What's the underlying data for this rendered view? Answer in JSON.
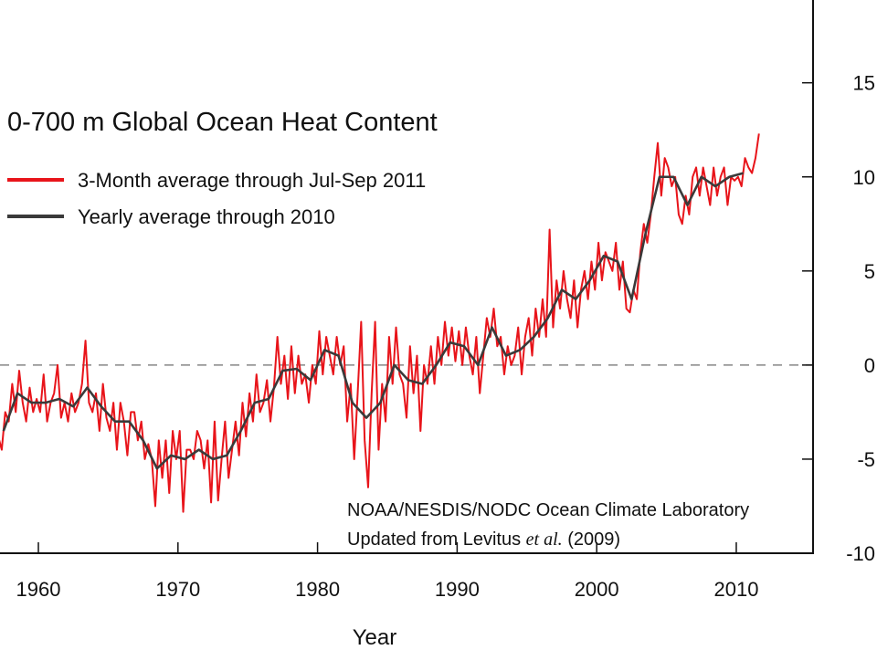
{
  "chart_data": {
    "type": "line",
    "title": "0-700 m Global Ocean Heat Content",
    "x_label": "Year",
    "source": {
      "line1": "NOAA/NESDIS/NODC Ocean Climate Laboratory",
      "line2": [
        "Updated from Levitus",
        "et al.",
        "(2009)"
      ]
    },
    "xlim": [
      1957.25,
      2015.5
    ],
    "ylim": [
      -10,
      19.4
    ],
    "xticks": [
      1960,
      1970,
      1980,
      1990,
      2000,
      2010
    ],
    "yticks": [
      -10,
      -5,
      0,
      5,
      10,
      15
    ],
    "reference_line": 0,
    "series": [
      {
        "name": "3-Month average through Jul-Sep 2011",
        "color": "#e8141a",
        "x": [
          1957.125,
          1957.375,
          1957.625,
          1957.875,
          1958.125,
          1958.375,
          1958.625,
          1958.875,
          1959.125,
          1959.375,
          1959.625,
          1959.875,
          1960.125,
          1960.375,
          1960.625,
          1960.875,
          1961.125,
          1961.375,
          1961.625,
          1961.875,
          1962.125,
          1962.375,
          1962.625,
          1962.875,
          1963.125,
          1963.375,
          1963.625,
          1963.875,
          1964.125,
          1964.375,
          1964.625,
          1964.875,
          1965.125,
          1965.375,
          1965.625,
          1965.875,
          1966.125,
          1966.375,
          1966.625,
          1966.875,
          1967.125,
          1967.375,
          1967.625,
          1967.875,
          1968.125,
          1968.375,
          1968.625,
          1968.875,
          1969.125,
          1969.375,
          1969.625,
          1969.875,
          1970.125,
          1970.375,
          1970.625,
          1970.875,
          1971.125,
          1971.375,
          1971.625,
          1971.875,
          1972.125,
          1972.375,
          1972.625,
          1972.875,
          1973.125,
          1973.375,
          1973.625,
          1973.875,
          1974.125,
          1974.375,
          1974.625,
          1974.875,
          1975.125,
          1975.375,
          1975.625,
          1975.875,
          1976.125,
          1976.375,
          1976.625,
          1976.875,
          1977.125,
          1977.375,
          1977.625,
          1977.875,
          1978.125,
          1978.375,
          1978.625,
          1978.875,
          1979.125,
          1979.375,
          1979.625,
          1979.875,
          1980.125,
          1980.375,
          1980.625,
          1980.875,
          1981.125,
          1981.375,
          1981.625,
          1981.875,
          1982.125,
          1982.375,
          1982.625,
          1982.875,
          1983.125,
          1983.375,
          1983.625,
          1983.875,
          1984.125,
          1984.375,
          1984.625,
          1984.875,
          1985.125,
          1985.375,
          1985.625,
          1985.875,
          1986.125,
          1986.375,
          1986.625,
          1986.875,
          1987.125,
          1987.375,
          1987.625,
          1987.875,
          1988.125,
          1988.375,
          1988.625,
          1988.875,
          1989.125,
          1989.375,
          1989.625,
          1989.875,
          1990.125,
          1990.375,
          1990.625,
          1990.875,
          1991.125,
          1991.375,
          1991.625,
          1991.875,
          1992.125,
          1992.375,
          1992.625,
          1992.875,
          1993.125,
          1993.375,
          1993.625,
          1993.875,
          1994.125,
          1994.375,
          1994.625,
          1994.875,
          1995.125,
          1995.375,
          1995.625,
          1995.875,
          1996.125,
          1996.375,
          1996.625,
          1996.875,
          1997.125,
          1997.375,
          1997.625,
          1997.875,
          1998.125,
          1998.375,
          1998.625,
          1998.875,
          1999.125,
          1999.375,
          1999.625,
          1999.875,
          2000.125,
          2000.375,
          2000.625,
          2000.875,
          2001.125,
          2001.375,
          2001.625,
          2001.875,
          2002.125,
          2002.375,
          2002.625,
          2002.875,
          2003.125,
          2003.375,
          2003.625,
          2003.875,
          2004.125,
          2004.375,
          2004.625,
          2004.875,
          2005.125,
          2005.375,
          2005.625,
          2005.875,
          2006.125,
          2006.375,
          2006.625,
          2006.875,
          2007.125,
          2007.375,
          2007.625,
          2007.875,
          2008.125,
          2008.375,
          2008.625,
          2008.875,
          2009.125,
          2009.375,
          2009.625,
          2009.875,
          2010.125,
          2010.375,
          2010.625,
          2010.875,
          2011.125,
          2011.375,
          2011.625
        ],
        "values": [
          -3.8,
          -4.5,
          -2.5,
          -3,
          -1,
          -2.5,
          -0.3,
          -2,
          -3,
          -1.2,
          -2.5,
          -1.8,
          -2.5,
          -0.5,
          -3,
          -2,
          -1.5,
          0,
          -2.8,
          -2,
          -3,
          -1.5,
          -2.5,
          -2,
          -1,
          1.3,
          -2,
          -2.5,
          -1.5,
          -3.5,
          -1,
          -2.8,
          -3.5,
          -2,
          -4.5,
          -2,
          -3,
          -4.8,
          -2.5,
          -2.5,
          -4,
          -3,
          -5,
          -4.2,
          -5,
          -7.5,
          -4,
          -6,
          -4,
          -6.8,
          -3.5,
          -5,
          -3.5,
          -7.8,
          -4.5,
          -4.5,
          -5,
          -3.5,
          -4,
          -5.5,
          -4,
          -7.3,
          -3,
          -7.2,
          -5,
          -3,
          -6,
          -4.5,
          -3,
          -4.8,
          -2,
          -3.8,
          -1.5,
          -3,
          -0.5,
          -2.5,
          -2,
          -0.8,
          -3,
          -1.2,
          1.5,
          -1,
          0.5,
          -1.8,
          1,
          -1.5,
          0.5,
          -1,
          -0.5,
          -2,
          0,
          -1,
          1.8,
          -0.5,
          1.5,
          0.5,
          -0.5,
          1.5,
          0,
          1,
          -3,
          -1,
          -5,
          -1.5,
          2.3,
          -4,
          -6.5,
          -1.5,
          2.3,
          -4.5,
          -1,
          -3,
          1.5,
          -1,
          2,
          -0.5,
          -1,
          -2.8,
          1,
          -1.5,
          0.5,
          -3.5,
          0,
          -1,
          1,
          -1,
          1.5,
          0,
          2.3,
          0.5,
          2,
          0.2,
          1.8,
          0,
          2,
          0.5,
          -0.5,
          1.5,
          -1.5,
          0.5,
          2.5,
          1.5,
          3,
          1,
          1.5,
          -0.5,
          1,
          0,
          0.5,
          2,
          -0.5,
          1.5,
          2.5,
          0.5,
          3,
          1.5,
          3.5,
          1.5,
          7.2,
          2,
          4.5,
          3,
          5,
          3.5,
          2.5,
          4.5,
          2,
          4,
          5,
          3.5,
          5.5,
          4,
          6.5,
          4.5,
          6,
          5.5,
          5,
          6.5,
          4,
          5.5,
          3,
          2.8,
          4,
          3.5,
          6,
          7.5,
          6.5,
          8,
          10,
          11.8,
          9,
          11,
          10.5,
          9.5,
          10,
          8,
          7.5,
          9,
          8,
          10,
          10.5,
          9,
          10.5,
          9.5,
          8.5,
          10.5,
          9,
          10,
          10.5,
          8.5,
          10,
          9.8,
          10,
          9.5,
          11,
          10.5,
          10.2,
          11,
          12.3
        ]
      },
      {
        "name": "Yearly average through 2010",
        "color": "#3a3a3a",
        "x": [
          1957.5,
          1958.5,
          1959.5,
          1960.5,
          1961.5,
          1962.5,
          1963.5,
          1964.5,
          1965.5,
          1966.5,
          1967.5,
          1968.5,
          1969.5,
          1970.5,
          1971.5,
          1972.5,
          1973.5,
          1974.5,
          1975.5,
          1976.5,
          1977.5,
          1978.5,
          1979.5,
          1980.5,
          1981.5,
          1982.5,
          1983.5,
          1984.5,
          1985.5,
          1986.5,
          1987.5,
          1988.5,
          1989.5,
          1990.5,
          1991.5,
          1992.5,
          1993.5,
          1994.5,
          1995.5,
          1996.5,
          1997.5,
          1998.5,
          1999.5,
          2000.5,
          2001.5,
          2002.5,
          2003.5,
          2004.5,
          2005.5,
          2006.5,
          2007.5,
          2008.5,
          2009.5,
          2010.5
        ],
        "values": [
          -3.5,
          -1.5,
          -2,
          -2,
          -1.8,
          -2.2,
          -1.2,
          -2.2,
          -3,
          -3,
          -4,
          -5.5,
          -4.8,
          -5,
          -4.5,
          -5,
          -4.8,
          -3.5,
          -2,
          -1.8,
          -0.3,
          -0.2,
          -0.8,
          0.8,
          0.5,
          -2,
          -2.8,
          -2,
          0,
          -0.8,
          -1,
          0,
          1.2,
          1,
          0,
          2,
          0.5,
          0.8,
          1.5,
          2.5,
          4,
          3.5,
          4.5,
          5.8,
          5.5,
          3.5,
          7,
          10,
          10,
          8.5,
          10,
          9.5,
          10,
          10.2
        ]
      }
    ]
  }
}
